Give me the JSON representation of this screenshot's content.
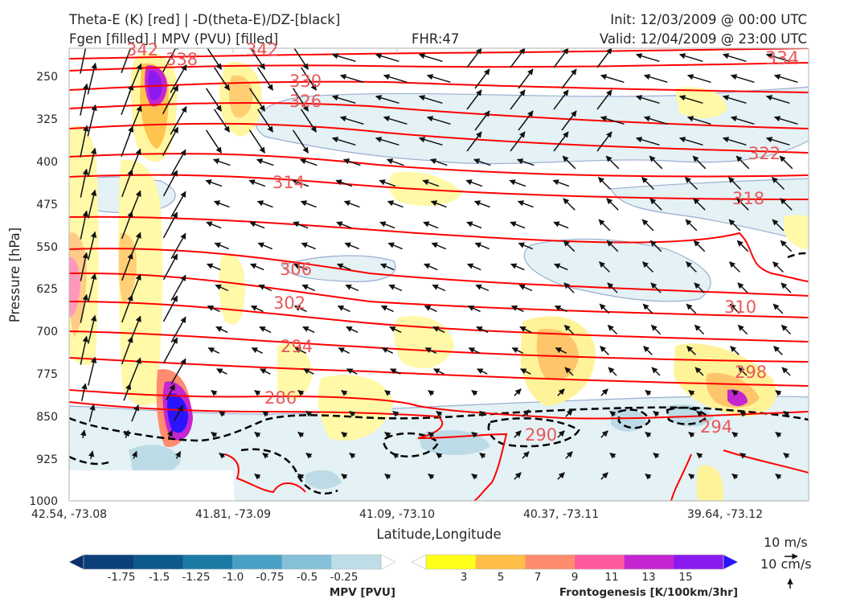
{
  "header": {
    "title_line1_left": "Theta-E (K) [red] | -D(theta-E)/DZ-[black]",
    "title_line2_left": "Fgen [filled] | MPV (PVU) [filled]",
    "title_center": "FHR:47",
    "init": "Init: 12/03/2009 @ 00:00 UTC",
    "valid": "Valid: 12/04/2009 @ 23:00 UTC"
  },
  "chart_data": {
    "type": "cross-section",
    "xlabel": "Latitude,Longitude",
    "ylabel": "Pressure [hPa]",
    "x_ticks": [
      "42.54, -73.08",
      "41.81, -73.09",
      "41.09, -73.10",
      "40.37, -73.11",
      "39.64, -73.12"
    ],
    "y_ticks": [
      250,
      325,
      400,
      475,
      550,
      625,
      700,
      775,
      850,
      925,
      1000
    ],
    "y_range": [
      1000,
      190
    ],
    "y_scale": "linear, inverted",
    "theta_e_contour_labels": [
      "342",
      "338",
      "342",
      "334",
      "330",
      "326",
      "322",
      "314",
      "318",
      "306",
      "302",
      "310",
      "294",
      "298",
      "286",
      "290",
      "294"
    ],
    "theta_e_color": "#ff0000",
    "mpv_colorbar": {
      "label": "MPV [PVU]",
      "ticks": [
        "-1.75",
        "-1.5",
        "-1.25",
        "-1.0",
        "-0.75",
        "-0.5",
        "-0.25"
      ],
      "colors": [
        "#08306b",
        "#0b3f7a",
        "#0d5a8c",
        "#1b7ba5",
        "#4aa0c4",
        "#86bfd8",
        "#bfdde8",
        "#ffffff"
      ]
    },
    "fgen_colorbar": {
      "label": "Frontogenesis [K/100km/3hr]",
      "ticks": [
        "3",
        "5",
        "7",
        "9",
        "11",
        "13",
        "15"
      ],
      "colors": [
        "#ffffff",
        "#ffff1a",
        "#ffbf46",
        "#ff8c6e",
        "#ff5aa0",
        "#c426d2",
        "#8a1aee",
        "#2a14ff"
      ]
    },
    "wind_quiver_key": {
      "horizontal": "10 m/s",
      "vertical": "10 cm/s"
    }
  }
}
